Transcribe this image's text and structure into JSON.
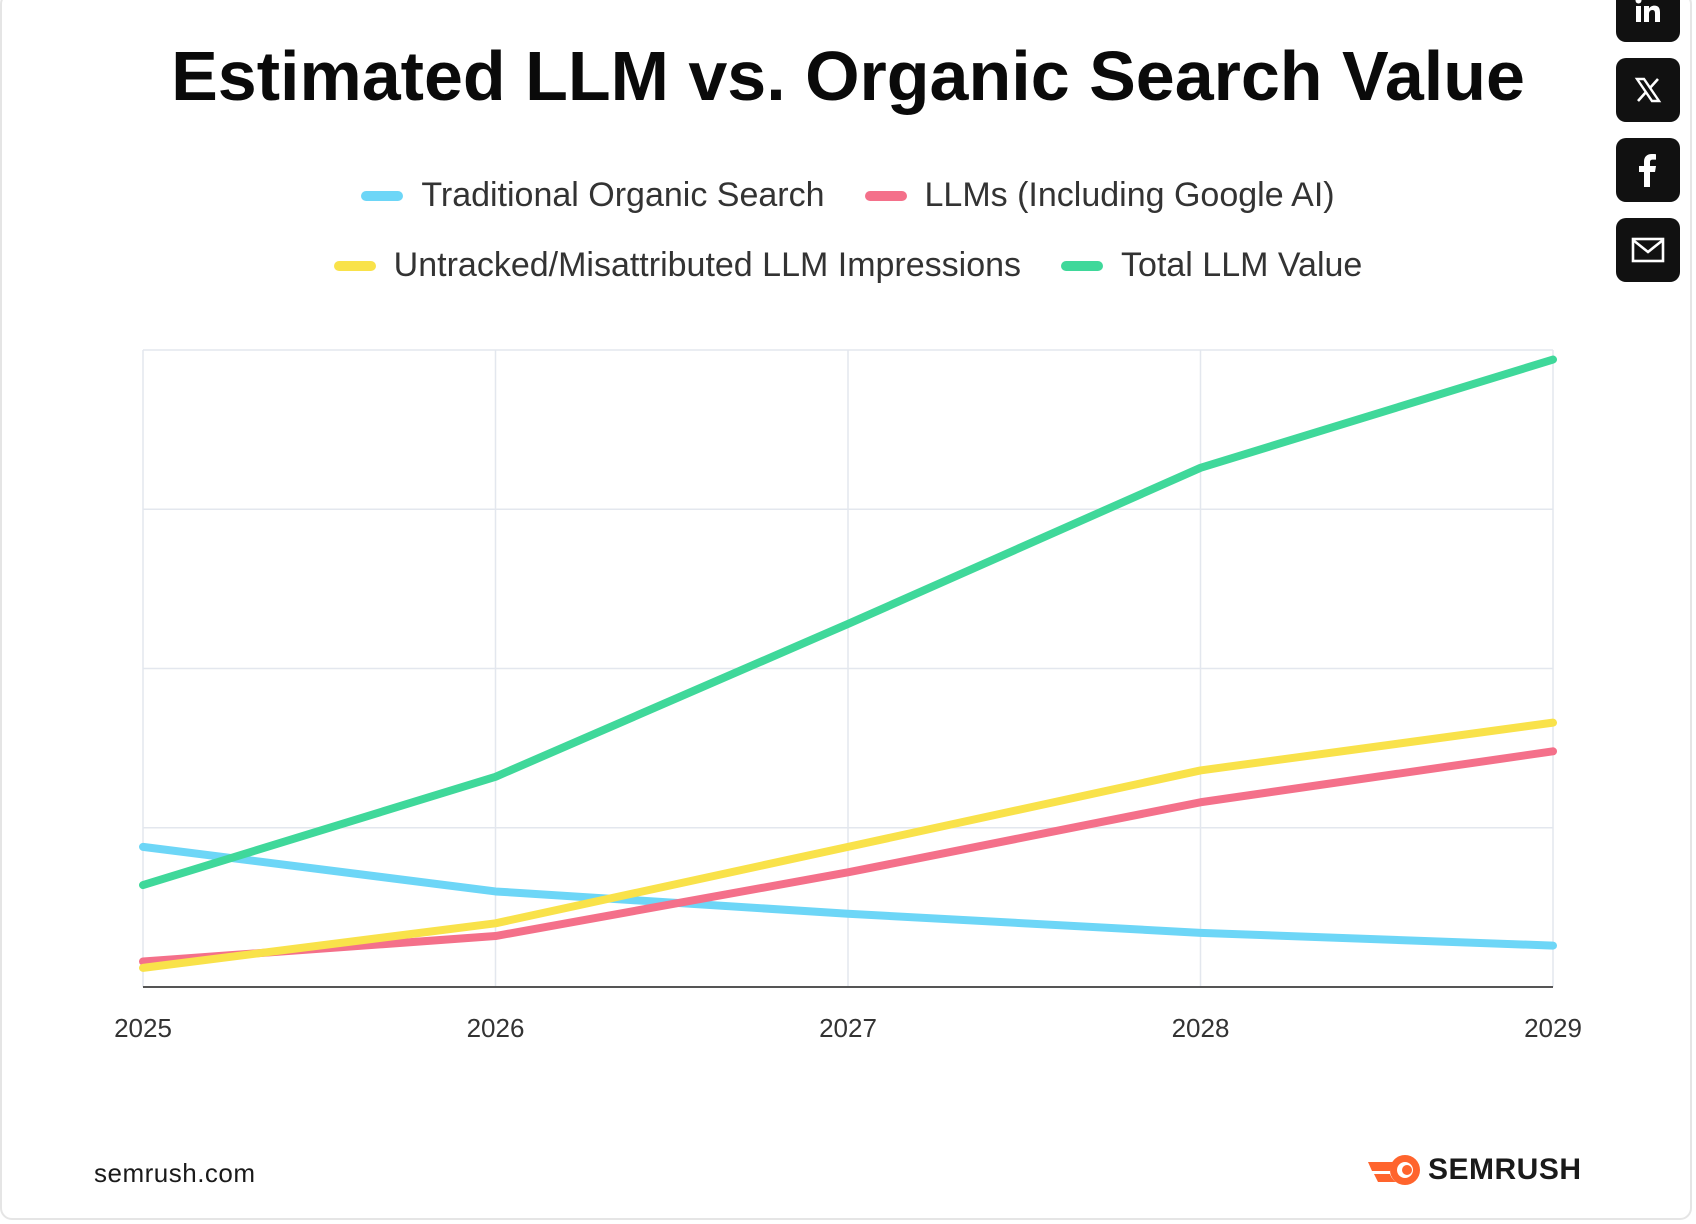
{
  "title": "Estimated LLM vs. Organic Search Value",
  "footer": {
    "url": "semrush.com",
    "brand": "SEMRUSH"
  },
  "share": {
    "icons": [
      "linkedin-icon",
      "x-icon",
      "facebook-icon",
      "mail-icon"
    ]
  },
  "colors": {
    "organic": "#6dd6f7",
    "llm": "#f4708a",
    "untracked": "#f9e24a",
    "total": "#3fd89a",
    "brand_orange": "#ff642d"
  },
  "chart_data": {
    "type": "line",
    "title": "Estimated LLM vs. Organic Search Value",
    "categories": [
      "2025",
      "2026",
      "2027",
      "2028",
      "2029"
    ],
    "ylim": [
      0,
      100
    ],
    "grid": true,
    "legend_position": "top",
    "series": [
      {
        "name": "Traditional Organic Search",
        "color": "#6dd6f7",
        "values": [
          22,
          15,
          11.5,
          8.5,
          6.5
        ]
      },
      {
        "name": "LLMs (Including Google AI)",
        "color": "#f4708a",
        "values": [
          4,
          8,
          18,
          29,
          37
        ]
      },
      {
        "name": "Untracked/Misattributed LLM Impressions",
        "color": "#f9e24a",
        "values": [
          3,
          10,
          22,
          34,
          41.5
        ]
      },
      {
        "name": "Total LLM Value",
        "color": "#3fd89a",
        "values": [
          16,
          33,
          57,
          81.5,
          98.5
        ]
      }
    ]
  }
}
